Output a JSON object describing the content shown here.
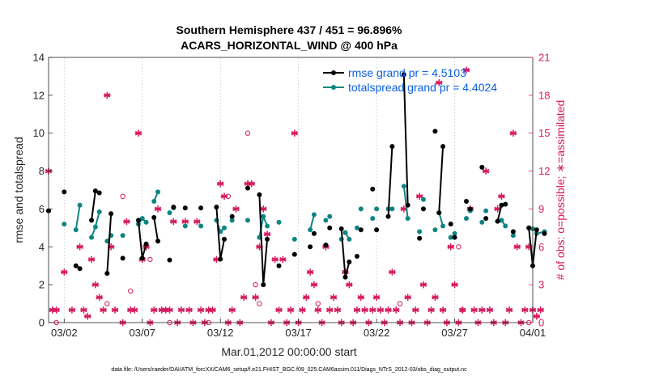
{
  "chart_data": {
    "type": "line",
    "title": "Southern Hemisphere 437 / 451 = 96.896%",
    "subtitle": "ACARS_HORIZONTAL_WIND @ 400 hPa",
    "xlabel": "Mar.01,2012 00:00:00 start",
    "ylabel": "rmse and totalspread",
    "ylabel_right": "# of obs: o=possible; ∗=assimilated",
    "footer": "data file: /Users/raeder/DAI/ATM_forcXX/CAM6_setup/f.e21.FHIST_BGC.f09_025.CAM6assim.011/Diags_NTrS_2012-03/obs_diag_output.nc",
    "xlim": [
      1,
      32
    ],
    "ylim": [
      0,
      14
    ],
    "ylim_right": [
      0,
      21
    ],
    "x_ticks": [
      2,
      7,
      12,
      17,
      22,
      27,
      32
    ],
    "x_tick_labels": [
      "03/02",
      "03/07",
      "03/12",
      "03/17",
      "03/22",
      "03/27",
      "04/01"
    ],
    "y_ticks": [
      0,
      2,
      4,
      6,
      8,
      10,
      12,
      14
    ],
    "y_ticks_right": [
      0,
      3,
      6,
      9,
      12,
      15,
      18,
      21
    ],
    "grid": "x-dotted",
    "legend": "top-right",
    "colors": {
      "rmse": "#000000",
      "spread": "#0e8582",
      "obs": "#d81b60",
      "legend_text": "#0a5fe6"
    },
    "series": [
      {
        "name": "rmse grand pr = 4.5103",
        "segments": [
          [
            [
              1.0,
              5.9
            ]
          ],
          [
            [
              2.0,
              6.9
            ]
          ],
          [
            [
              2.75,
              3.0
            ],
            [
              3.0,
              2.85
            ]
          ],
          [
            [
              3.75,
              5.4
            ],
            [
              4.0,
              6.95
            ],
            [
              4.25,
              6.85
            ]
          ],
          [
            [
              4.75,
              2.6
            ],
            [
              5.0,
              5.75
            ]
          ],
          [
            [
              5.75,
              3.4
            ]
          ],
          [
            [
              6.75,
              5.4
            ],
            [
              7.0,
              3.4
            ],
            [
              7.25,
              4.15
            ]
          ],
          [
            [
              7.75,
              5.55
            ],
            [
              8.0,
              4.3
            ]
          ],
          [
            [
              8.75,
              3.3
            ]
          ],
          [
            [
              9.0,
              6.1
            ]
          ],
          [
            [
              9.75,
              6.05
            ]
          ],
          [
            [
              10.75,
              6.05
            ]
          ],
          [
            [
              11.75,
              6.1
            ],
            [
              12.0,
              3.35
            ],
            [
              12.25,
              4.4
            ]
          ],
          [
            [
              12.75,
              5.6
            ]
          ],
          [
            [
              13.75,
              7.1
            ]
          ],
          [
            [
              14.5,
              6.75
            ],
            [
              14.75,
              2.0
            ],
            [
              15.0,
              4.4
            ]
          ],
          [
            [
              15.75,
              3.0
            ]
          ],
          [
            [
              16.75,
              3.6
            ]
          ],
          [
            [
              17.75,
              4.0
            ]
          ],
          [
            [
              18.0,
              4.7
            ]
          ],
          [
            [
              18.75,
              4.1
            ]
          ],
          [
            [
              19.0,
              5.0
            ]
          ],
          [
            [
              19.75,
              4.95
            ],
            [
              20.0,
              2.4
            ],
            [
              20.25,
              3.2
            ]
          ],
          [
            [
              20.75,
              3.5
            ]
          ],
          [
            [
              21.0,
              4.9
            ]
          ],
          [
            [
              21.75,
              7.05
            ]
          ],
          [
            [
              22.0,
              4.9
            ]
          ],
          [
            [
              22.75,
              5.6
            ],
            [
              23.0,
              9.3
            ]
          ],
          [
            [
              23.75,
              13.1
            ],
            [
              24.0,
              6.2
            ]
          ],
          [
            [
              24.75,
              4.45
            ]
          ],
          [
            [
              25.0,
              6.0
            ]
          ],
          [
            [
              25.75,
              10.1
            ]
          ],
          [
            [
              26.0,
              5.8
            ],
            [
              26.25,
              9.3
            ]
          ],
          [
            [
              26.75,
              5.2
            ]
          ],
          [
            [
              27.0,
              4.5
            ]
          ],
          [
            [
              27.75,
              6.4
            ]
          ],
          [
            [
              28.0,
              6.0
            ]
          ],
          [
            [
              28.75,
              8.2
            ]
          ],
          [
            [
              29.0,
              5.5
            ]
          ],
          [
            [
              29.75,
              5.35
            ],
            [
              30.0,
              6.2
            ],
            [
              30.25,
              6.25
            ]
          ],
          [
            [
              30.75,
              4.8
            ]
          ],
          [
            [
              31.75,
              5.0
            ],
            [
              32.0,
              3.0
            ],
            [
              32.25,
              4.9
            ]
          ],
          [
            [
              32.75,
              4.7
            ]
          ]
        ]
      },
      {
        "name": "totalspread grand pr = 4.4024",
        "segments": [
          [
            [
              1.0,
              5.9
            ]
          ],
          [
            [
              2.0,
              5.2
            ]
          ],
          [
            [
              2.75,
              4.9
            ],
            [
              3.0,
              6.2
            ]
          ],
          [
            [
              3.75,
              4.5
            ],
            [
              4.0,
              5.05
            ],
            [
              4.25,
              5.85
            ]
          ],
          [
            [
              4.75,
              4.3
            ],
            [
              5.0,
              4.6
            ]
          ],
          [
            [
              5.75,
              4.6
            ]
          ],
          [
            [
              6.75,
              5.2
            ],
            [
              7.0,
              5.5
            ],
            [
              7.25,
              5.3
            ]
          ],
          [
            [
              7.75,
              6.4
            ],
            [
              8.0,
              6.9
            ]
          ],
          [
            [
              8.75,
              5.8
            ]
          ],
          [
            [
              9.0,
              6.05
            ]
          ],
          [
            [
              9.75,
              5.1
            ]
          ],
          [
            [
              10.75,
              5.1
            ]
          ],
          [
            [
              11.75,
              5.4
            ],
            [
              12.0,
              4.8
            ],
            [
              12.25,
              5.0
            ]
          ],
          [
            [
              12.75,
              5.4
            ]
          ],
          [
            [
              13.75,
              5.4
            ]
          ],
          [
            [
              14.5,
              4.5
            ],
            [
              14.75,
              5.6
            ],
            [
              15.0,
              5.1
            ]
          ],
          [
            [
              15.75,
              5.3
            ]
          ],
          [
            [
              16.75,
              4.4
            ]
          ],
          [
            [
              17.75,
              4.9
            ],
            [
              18.0,
              5.7
            ]
          ],
          [
            [
              18.75,
              5.4
            ]
          ],
          [
            [
              19.0,
              5.6
            ]
          ],
          [
            [
              19.75,
              4.4
            ]
          ],
          [
            [
              20.0,
              4.75
            ],
            [
              20.25,
              4.4
            ]
          ],
          [
            [
              20.75,
              5.0
            ]
          ],
          [
            [
              21.0,
              6.0
            ]
          ],
          [
            [
              21.75,
              5.5
            ]
          ],
          [
            [
              22.0,
              6.0
            ]
          ],
          [
            [
              22.75,
              6.0
            ],
            [
              23.0,
              6.0
            ]
          ],
          [
            [
              23.75,
              7.2
            ],
            [
              24.0,
              5.5
            ]
          ],
          [
            [
              24.75,
              4.8
            ]
          ],
          [
            [
              25.0,
              6.5
            ]
          ],
          [
            [
              25.75,
              4.9
            ]
          ],
          [
            [
              26.0,
              5.8
            ],
            [
              26.25,
              5.1
            ]
          ],
          [
            [
              26.75,
              4.5
            ]
          ],
          [
            [
              27.0,
              4.7
            ]
          ],
          [
            [
              27.75,
              5.5
            ]
          ],
          [
            [
              28.0,
              5.9
            ]
          ],
          [
            [
              28.75,
              5.3
            ]
          ],
          [
            [
              29.0,
              5.9
            ]
          ],
          [
            [
              29.75,
              5.35
            ],
            [
              30.0,
              5.4
            ],
            [
              30.25,
              5.1
            ]
          ],
          [
            [
              30.75,
              4.6
            ]
          ],
          [
            [
              31.75,
              5.0
            ]
          ],
          [
            [
              32.0,
              4.95
            ]
          ],
          [
            [
              32.25,
              4.7
            ],
            [
              32.75,
              4.8
            ]
          ]
        ]
      }
    ],
    "obs_assimilated": [
      [
        1.0,
        12
      ],
      [
        1.25,
        1
      ],
      [
        1.5,
        1
      ],
      [
        2.0,
        4
      ],
      [
        2.5,
        1
      ],
      [
        3.0,
        6
      ],
      [
        3.25,
        1
      ],
      [
        3.5,
        0.5
      ],
      [
        3.75,
        5
      ],
      [
        4.0,
        3
      ],
      [
        4.25,
        2
      ],
      [
        4.5,
        1
      ],
      [
        4.75,
        18
      ],
      [
        5.0,
        6
      ],
      [
        5.25,
        1
      ],
      [
        5.75,
        0
      ],
      [
        6.0,
        8
      ],
      [
        6.25,
        1
      ],
      [
        6.5,
        1
      ],
      [
        6.75,
        15
      ],
      [
        7.0,
        5
      ],
      [
        7.25,
        6
      ],
      [
        7.5,
        0
      ],
      [
        7.75,
        1
      ],
      [
        8.0,
        9
      ],
      [
        8.25,
        1
      ],
      [
        8.5,
        1
      ],
      [
        8.75,
        1
      ],
      [
        9.0,
        8
      ],
      [
        9.25,
        0
      ],
      [
        9.5,
        1
      ],
      [
        9.75,
        8
      ],
      [
        10.0,
        1
      ],
      [
        10.25,
        0
      ],
      [
        10.5,
        8
      ],
      [
        10.75,
        1
      ],
      [
        11.0,
        0
      ],
      [
        11.25,
        1
      ],
      [
        11.5,
        1
      ],
      [
        11.75,
        5
      ],
      [
        12.0,
        11
      ],
      [
        12.25,
        10
      ],
      [
        12.5,
        0
      ],
      [
        12.75,
        1
      ],
      [
        13.0,
        9
      ],
      [
        13.25,
        0
      ],
      [
        13.5,
        2
      ],
      [
        13.75,
        11
      ],
      [
        14.0,
        11
      ],
      [
        14.25,
        2
      ],
      [
        14.5,
        6
      ],
      [
        14.75,
        9
      ],
      [
        15.0,
        7
      ],
      [
        15.25,
        0
      ],
      [
        15.5,
        5
      ],
      [
        15.75,
        1
      ],
      [
        16.0,
        5
      ],
      [
        16.25,
        0
      ],
      [
        16.5,
        1
      ],
      [
        16.75,
        15
      ],
      [
        17.0,
        0
      ],
      [
        17.25,
        1
      ],
      [
        17.5,
        2
      ],
      [
        17.75,
        4
      ],
      [
        18.0,
        3
      ],
      [
        18.25,
        1
      ],
      [
        18.5,
        0
      ],
      [
        18.75,
        6
      ],
      [
        19.0,
        1
      ],
      [
        19.25,
        2
      ],
      [
        19.5,
        1
      ],
      [
        19.75,
        0
      ],
      [
        20.0,
        4
      ],
      [
        20.25,
        3
      ],
      [
        20.5,
        0
      ],
      [
        20.75,
        1
      ],
      [
        21.0,
        2
      ],
      [
        21.25,
        1
      ],
      [
        21.5,
        0
      ],
      [
        21.75,
        1
      ],
      [
        22.0,
        2
      ],
      [
        22.25,
        1
      ],
      [
        22.5,
        0
      ],
      [
        22.75,
        1
      ],
      [
        23.0,
        4
      ],
      [
        23.25,
        1
      ],
      [
        23.5,
        0
      ],
      [
        23.75,
        9
      ],
      [
        24.0,
        2
      ],
      [
        24.25,
        0
      ],
      [
        24.5,
        1
      ],
      [
        24.75,
        10
      ],
      [
        25.0,
        3
      ],
      [
        25.25,
        0
      ],
      [
        25.5,
        1
      ],
      [
        25.75,
        2
      ],
      [
        26.0,
        19
      ],
      [
        26.25,
        1
      ],
      [
        26.5,
        0
      ],
      [
        26.75,
        6
      ],
      [
        27.0,
        3
      ],
      [
        27.25,
        0
      ],
      [
        27.5,
        1
      ],
      [
        27.75,
        20
      ],
      [
        28.0,
        9
      ],
      [
        28.25,
        1
      ],
      [
        28.5,
        0
      ],
      [
        28.75,
        1
      ],
      [
        29.0,
        12
      ],
      [
        29.25,
        1
      ],
      [
        29.5,
        0
      ],
      [
        29.75,
        9
      ],
      [
        30.0,
        10
      ],
      [
        30.25,
        0
      ],
      [
        30.5,
        1
      ],
      [
        30.75,
        15
      ],
      [
        31.0,
        6
      ],
      [
        31.25,
        0
      ],
      [
        31.5,
        1
      ],
      [
        31.75,
        6
      ],
      [
        32.0,
        1
      ],
      [
        32.25,
        0.5
      ],
      [
        32.5,
        1
      ]
    ],
    "obs_possible": [
      [
        1.5,
        0
      ],
      [
        4.75,
        1.5
      ],
      [
        5.75,
        10
      ],
      [
        6.25,
        2.5
      ],
      [
        7.5,
        5
      ],
      [
        8.75,
        0
      ],
      [
        11.25,
        0
      ],
      [
        12.5,
        10
      ],
      [
        13.75,
        15
      ],
      [
        14.25,
        3
      ],
      [
        14.5,
        1.5
      ],
      [
        18.25,
        1.5
      ],
      [
        23.5,
        1.5
      ],
      [
        27.25,
        6
      ],
      [
        27.5,
        1
      ],
      [
        31.75,
        0
      ]
    ]
  }
}
